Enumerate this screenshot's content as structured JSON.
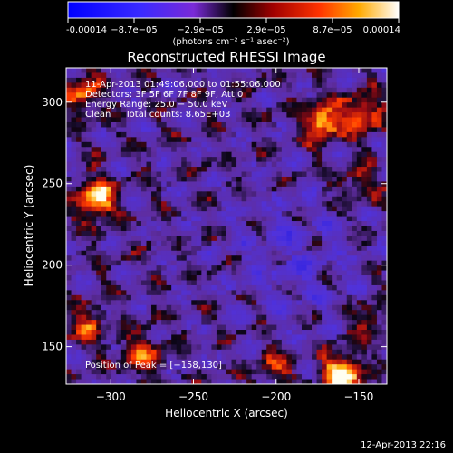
{
  "colorbar": {
    "ticks": [
      "-0.00014",
      "−8.7e−05",
      "−2.9e−05",
      "2.9e−05",
      "8.7e−05",
      "0.00014"
    ],
    "units_label": "(photons cm⁻² s⁻¹ asec⁻²)"
  },
  "plot": {
    "title": "Reconstructed RHESSI Image",
    "info_lines": [
      "11-Apr-2013 01:49:06.000 to 01:55:06.000",
      "Detectors: 3F 5F 6F 7F 8F 9F, Att 0",
      "Energy Range: 25.0 − 50.0 keV",
      "Clean     Total counts: 8.65E+03"
    ],
    "peak_label": "Position of Peak = [−158,130]"
  },
  "footer": {
    "timestamp": "12-Apr-2013 22:16"
  },
  "chart_data": {
    "type": "heatmap",
    "title": "Reconstructed RHESSI Image",
    "xlabel": "Heliocentric X (arcsec)",
    "ylabel": "Heliocentric Y (arcsec)",
    "xlim": [
      -327,
      -133
    ],
    "ylim": [
      127,
      321
    ],
    "x_ticks": [
      -300,
      -250,
      -200,
      -150
    ],
    "y_ticks": [
      150,
      200,
      250,
      300
    ],
    "x_tick_labels": [
      "−300",
      "−250",
      "−200",
      "−150"
    ],
    "y_tick_labels": [
      "150",
      "200",
      "250",
      "300"
    ],
    "colorbar_range": [
      -0.00014,
      0.00014
    ],
    "peak_position": [
      -158,
      130
    ],
    "bright_sources": [
      {
        "x": -160,
        "y": 133,
        "level": 1.0
      },
      {
        "x": -309,
        "y": 241,
        "level": 0.9
      },
      {
        "x": -172,
        "y": 288,
        "level": 0.75
      },
      {
        "x": -148,
        "y": 292,
        "level": 0.65
      },
      {
        "x": -318,
        "y": 305,
        "level": 0.55
      },
      {
        "x": -282,
        "y": 145,
        "level": 0.55
      },
      {
        "x": -315,
        "y": 163,
        "level": 0.45
      },
      {
        "x": -200,
        "y": 137,
        "level": 0.4
      },
      {
        "x": -150,
        "y": 250,
        "level": 0.35
      },
      {
        "x": -145,
        "y": 165,
        "level": 0.3
      }
    ],
    "colorscale": "blue-purple-black-red-yellow-white"
  }
}
